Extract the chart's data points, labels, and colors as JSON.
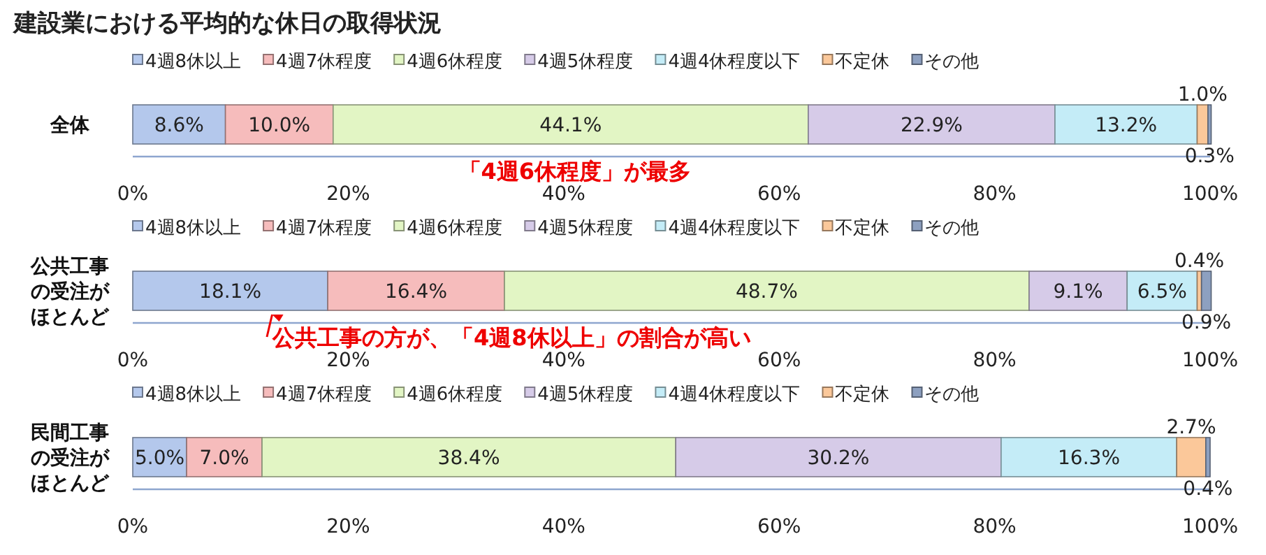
{
  "chart_data": [
    {
      "type": "bar",
      "orientation": "horizontal",
      "stacked": true,
      "title": "建設業における平均的な休日の取得状況",
      "categories": [
        "全体"
      ],
      "legend": "top",
      "xlim": [
        0,
        100
      ],
      "xticks": [
        {
          "value": 0,
          "label": "0%"
        },
        {
          "value": 20,
          "label": "20%"
        },
        {
          "value": 40,
          "label": "40%"
        },
        {
          "value": 60,
          "label": "60%"
        },
        {
          "value": 80,
          "label": "80%"
        },
        {
          "value": 100,
          "label": "100%"
        }
      ],
      "series": [
        {
          "name": "4週8休以上",
          "color": "#b4c8ec",
          "values": [
            8.6
          ],
          "value_labels": [
            "8.6%"
          ]
        },
        {
          "name": "4週7休程度",
          "color": "#f6bcbc",
          "values": [
            10.0
          ],
          "value_labels": [
            "10.0%"
          ]
        },
        {
          "name": "4週6休程度",
          "color": "#e2f5c4",
          "values": [
            44.1
          ],
          "value_labels": [
            "44.1%"
          ]
        },
        {
          "name": "4週5休程度",
          "color": "#d6cbe8",
          "values": [
            22.9
          ],
          "value_labels": [
            "22.9%"
          ]
        },
        {
          "name": "4週4休程度以下",
          "color": "#c4ecf7",
          "values": [
            13.2
          ],
          "value_labels": [
            "13.2%"
          ]
        },
        {
          "name": "不定休",
          "color": "#fbc89a",
          "values": [
            1.0
          ],
          "value_labels": [
            "1.0%"
          ]
        },
        {
          "name": "その他",
          "color": "#8da0c0",
          "values": [
            0.3
          ],
          "value_labels": [
            "0.3%"
          ]
        }
      ],
      "annotations": [
        "「4週6休程度」が最多"
      ]
    },
    {
      "type": "bar",
      "orientation": "horizontal",
      "stacked": true,
      "categories": [
        "公共工事の受注がほとんど"
      ],
      "legend": "top",
      "xlim": [
        0,
        100
      ],
      "xticks": [
        {
          "value": 0,
          "label": "0%"
        },
        {
          "value": 20,
          "label": "20%"
        },
        {
          "value": 40,
          "label": "40%"
        },
        {
          "value": 60,
          "label": "60%"
        },
        {
          "value": 80,
          "label": "80%"
        },
        {
          "value": 100,
          "label": "100%"
        }
      ],
      "series": [
        {
          "name": "4週8休以上",
          "color": "#b4c8ec",
          "values": [
            18.1
          ],
          "value_labels": [
            "18.1%"
          ]
        },
        {
          "name": "4週7休程度",
          "color": "#f6bcbc",
          "values": [
            16.4
          ],
          "value_labels": [
            "16.4%"
          ]
        },
        {
          "name": "4週6休程度",
          "color": "#e2f5c4",
          "values": [
            48.7
          ],
          "value_labels": [
            "48.7%"
          ]
        },
        {
          "name": "4週5休程度",
          "color": "#d6cbe8",
          "values": [
            9.1
          ],
          "value_labels": [
            "9.1%"
          ]
        },
        {
          "name": "4週4休程度以下",
          "color": "#c4ecf7",
          "values": [
            6.5
          ],
          "value_labels": [
            "6.5%"
          ]
        },
        {
          "name": "不定休",
          "color": "#fbc89a",
          "values": [
            0.4
          ],
          "value_labels": [
            "0.4%"
          ]
        },
        {
          "name": "その他",
          "color": "#8da0c0",
          "values": [
            0.9
          ],
          "value_labels": [
            "0.9%"
          ]
        }
      ],
      "annotations": [
        "公共工事の方が、「4週8休以上」の割合が高い"
      ]
    },
    {
      "type": "bar",
      "orientation": "horizontal",
      "stacked": true,
      "categories": [
        "民間工事の受注がほとんど"
      ],
      "legend": "top",
      "xlim": [
        0,
        100
      ],
      "xticks": [
        {
          "value": 0,
          "label": "0%"
        },
        {
          "value": 20,
          "label": "20%"
        },
        {
          "value": 40,
          "label": "40%"
        },
        {
          "value": 60,
          "label": "60%"
        },
        {
          "value": 80,
          "label": "80%"
        },
        {
          "value": 100,
          "label": "100%"
        }
      ],
      "series": [
        {
          "name": "4週8休以上",
          "color": "#b4c8ec",
          "values": [
            5.0
          ],
          "value_labels": [
            "5.0%"
          ]
        },
        {
          "name": "4週7休程度",
          "color": "#f6bcbc",
          "values": [
            7.0
          ],
          "value_labels": [
            "7.0%"
          ]
        },
        {
          "name": "4週6休程度",
          "color": "#e2f5c4",
          "values": [
            38.4
          ],
          "value_labels": [
            "38.4%"
          ]
        },
        {
          "name": "4週5休程度",
          "color": "#d6cbe8",
          "values": [
            30.2
          ],
          "value_labels": [
            "30.2%"
          ]
        },
        {
          "name": "4週4休程度以下",
          "color": "#c4ecf7",
          "values": [
            16.3
          ],
          "value_labels": [
            "16.3%"
          ]
        },
        {
          "name": "不定休",
          "color": "#fbc89a",
          "values": [
            2.7
          ],
          "value_labels": [
            "2.7%"
          ]
        },
        {
          "name": "その他",
          "color": "#8da0c0",
          "values": [
            0.4
          ],
          "value_labels": [
            "0.4%"
          ]
        }
      ]
    }
  ]
}
